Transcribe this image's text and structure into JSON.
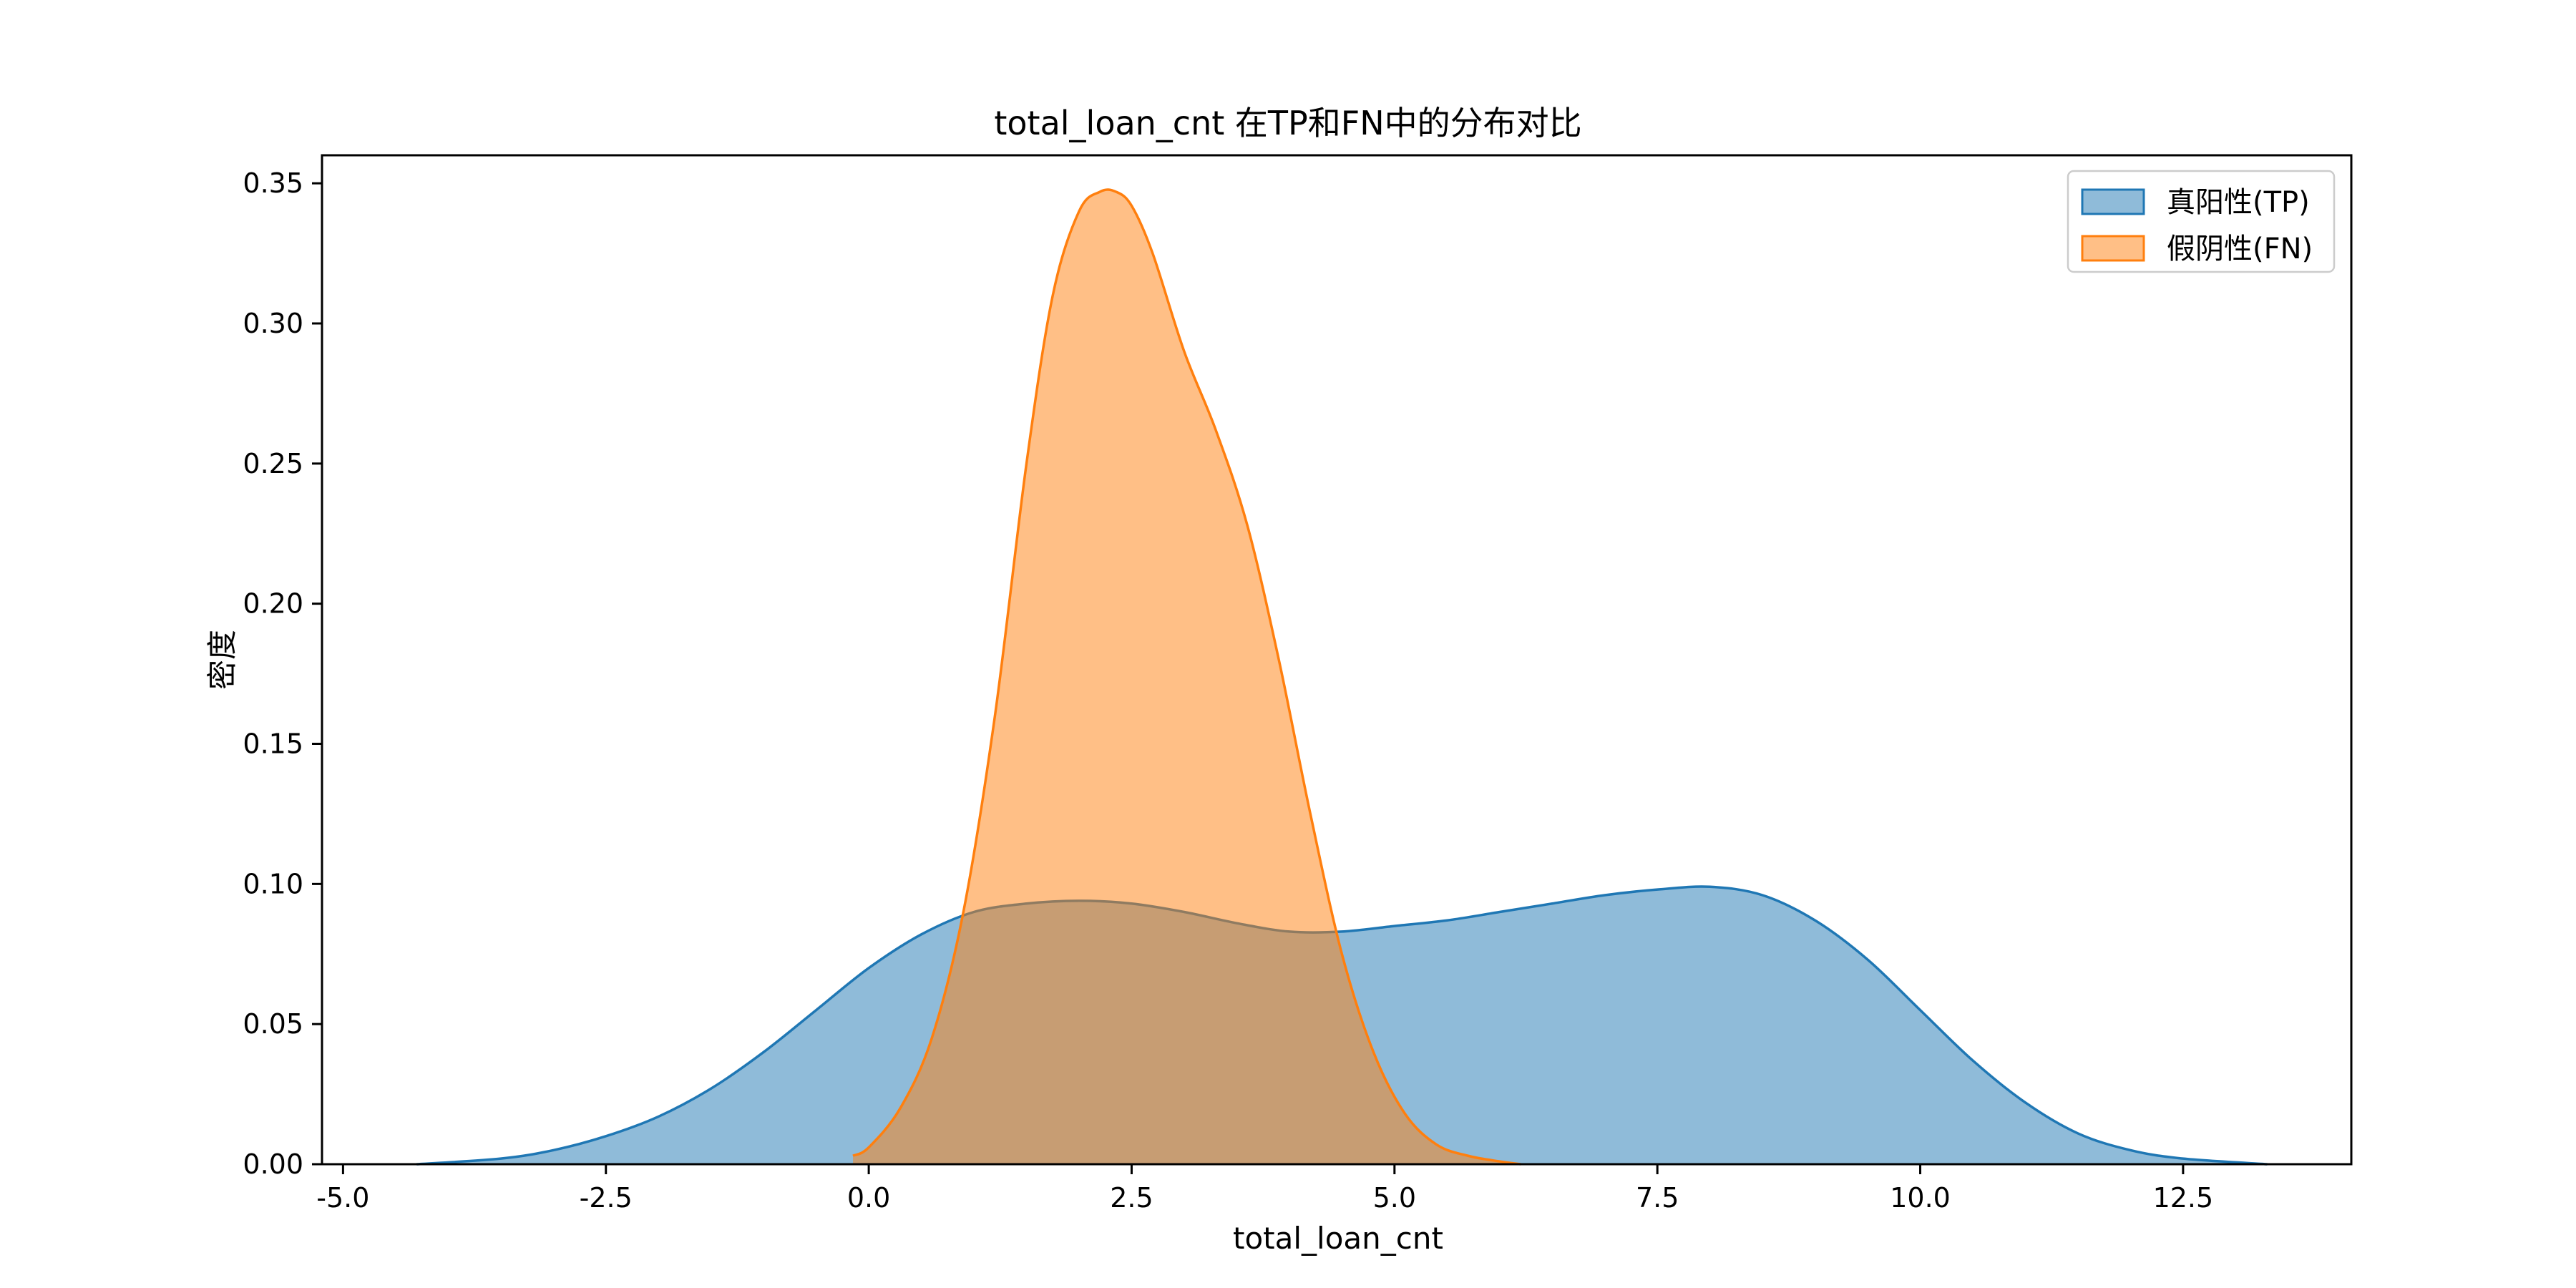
{
  "chart_data": {
    "type": "area",
    "title": "total_loan_cnt 在TP和FN中的分布对比",
    "xlabel": "total_loan_cnt",
    "ylabel": "密度",
    "xlim": [
      -5.2,
      14.1
    ],
    "ylim": [
      0,
      0.36
    ],
    "xticks": [
      "-5.0",
      "-2.5",
      "0.0",
      "2.5",
      "5.0",
      "7.5",
      "10.0",
      "12.5"
    ],
    "xtick_values": [
      -5.0,
      -2.5,
      0.0,
      2.5,
      5.0,
      7.5,
      10.0,
      12.5
    ],
    "yticks": [
      "0.00",
      "0.05",
      "0.10",
      "0.15",
      "0.20",
      "0.25",
      "0.30",
      "0.35"
    ],
    "ytick_values": [
      0.0,
      0.05,
      0.1,
      0.15,
      0.2,
      0.25,
      0.3,
      0.35
    ],
    "grid": false,
    "legend_position": "top-right",
    "series": [
      {
        "name": "真阳性(TP)",
        "color": "#1f77b4",
        "fill_opacity": 0.5,
        "x": [
          -4.3,
          -3.5,
          -3.0,
          -2.5,
          -2.0,
          -1.5,
          -1.0,
          -0.5,
          0.0,
          0.5,
          1.0,
          1.5,
          2.0,
          2.5,
          3.0,
          3.5,
          4.0,
          4.5,
          5.0,
          5.5,
          6.0,
          6.5,
          7.0,
          7.5,
          8.0,
          8.5,
          9.0,
          9.5,
          10.0,
          10.5,
          11.0,
          11.5,
          12.0,
          12.5,
          13.3
        ],
        "y": [
          0.0,
          0.002,
          0.005,
          0.01,
          0.017,
          0.027,
          0.04,
          0.055,
          0.07,
          0.082,
          0.09,
          0.093,
          0.094,
          0.093,
          0.09,
          0.086,
          0.083,
          0.083,
          0.085,
          0.087,
          0.09,
          0.093,
          0.096,
          0.098,
          0.099,
          0.096,
          0.087,
          0.073,
          0.055,
          0.037,
          0.022,
          0.011,
          0.005,
          0.002,
          0.0
        ]
      },
      {
        "name": "假阴性(FN)",
        "color": "#ff7f0e",
        "fill_opacity": 0.5,
        "x": [
          -0.15,
          0.0,
          0.3,
          0.6,
          0.9,
          1.2,
          1.5,
          1.75,
          2.0,
          2.2,
          2.35,
          2.5,
          2.7,
          3.0,
          3.3,
          3.6,
          3.9,
          4.2,
          4.5,
          4.8,
          5.1,
          5.4,
          5.7,
          6.0,
          6.2
        ],
        "y": [
          0.003,
          0.006,
          0.02,
          0.045,
          0.09,
          0.16,
          0.25,
          0.31,
          0.34,
          0.347,
          0.347,
          0.342,
          0.325,
          0.29,
          0.262,
          0.228,
          0.18,
          0.125,
          0.075,
          0.04,
          0.018,
          0.007,
          0.003,
          0.001,
          0.0
        ]
      }
    ]
  }
}
